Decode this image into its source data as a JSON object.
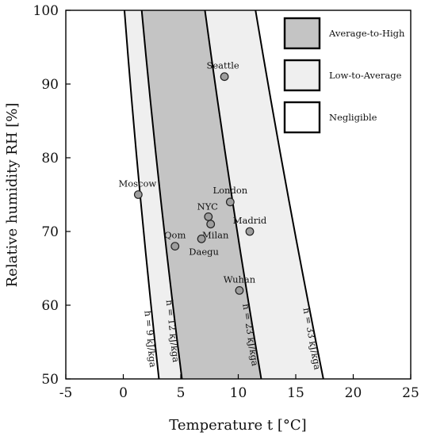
{
  "chart_data": {
    "type": "scatter",
    "title": "",
    "xlabel": "Temperature t [°C]",
    "ylabel": "Relative humidity RH [%]",
    "xlim": [
      -5,
      25
    ],
    "ylim": [
      50,
      100
    ],
    "xticks": [
      "-5",
      "0",
      "5",
      "10",
      "15",
      "20",
      "25"
    ],
    "yticks": [
      "50",
      "60",
      "70",
      "80",
      "90",
      "100"
    ],
    "grid": false,
    "legend_position": "top-right",
    "zones": [
      {
        "name": "Average-to-High",
        "color": "#c4c4c4",
        "between": [
          "h = 12 kJ/kga",
          "h = 23 kJ/kga"
        ]
      },
      {
        "name": "Low-to-Average",
        "color": "#efefef",
        "between": [
          "h = 9 kJ/kga",
          "h = 12 kJ/kga",
          "h = 23 kJ/kga",
          "h = 33 kJ/kga"
        ]
      },
      {
        "name": "Negligible",
        "color": "#ffffff"
      }
    ],
    "curves": [
      {
        "label": "h = 9 kJ/kga",
        "top": [
          0.1,
          100
        ],
        "bottom": [
          3.1,
          50
        ]
      },
      {
        "label": "h = 12 kJ/kga",
        "top": [
          1.6,
          100
        ],
        "bottom": [
          5.1,
          50
        ]
      },
      {
        "label": "h = 23 kJ/kga",
        "top": [
          7.1,
          100
        ],
        "bottom": [
          12.0,
          50
        ]
      },
      {
        "label": "h = 33 kJ/kga",
        "top": [
          11.5,
          100
        ],
        "bottom": [
          17.4,
          50
        ]
      }
    ],
    "points": [
      {
        "label": "Seattle",
        "x": 8.8,
        "y": 91
      },
      {
        "label": "Moscow",
        "x": 1.3,
        "y": 75
      },
      {
        "label": "London",
        "x": 9.3,
        "y": 74
      },
      {
        "label": "NYC",
        "x": 7.4,
        "y": 72
      },
      {
        "label": "Milan",
        "x": 7.6,
        "y": 71
      },
      {
        "label": "Madrid",
        "x": 11.0,
        "y": 70
      },
      {
        "label": "Qom",
        "x": 4.5,
        "y": 68
      },
      {
        "label": "Daegu",
        "x": 6.8,
        "y": 69
      },
      {
        "label": "Wuhan",
        "x": 10.1,
        "y": 62
      }
    ]
  }
}
